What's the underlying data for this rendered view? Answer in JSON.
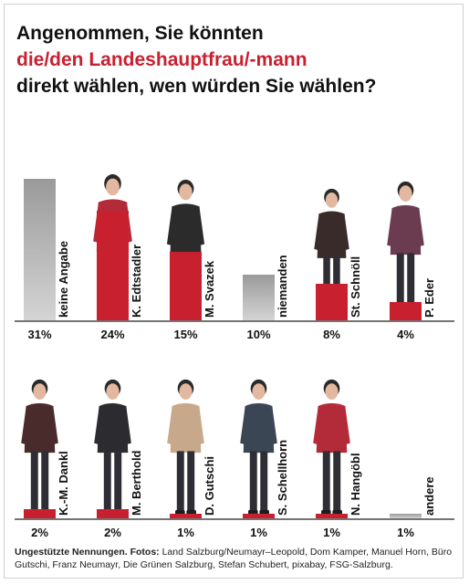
{
  "title": {
    "line1": "Angenommen, Sie könnten",
    "line2": "die/den Landeshauptfrau/-mann",
    "line3": "direkt wählen, wen würden Sie wählen?"
  },
  "colors": {
    "accent": "#c8202f",
    "grey": "#9a9a9a",
    "text": "#111111"
  },
  "chart_data": [
    {
      "type": "bar",
      "categories": [
        "keine Angabe",
        "K. Edtstadler",
        "M. Svazek",
        "niemanden",
        "St. Schnöll",
        "P. Eder"
      ],
      "values": [
        31,
        24,
        15,
        10,
        8,
        4
      ],
      "value_labels": [
        "31%",
        "24%",
        "15%",
        "10%",
        "8%",
        "4%"
      ],
      "bar_colors": [
        "#9a9a9a",
        "#c8202f",
        "#c8202f",
        "#9a9a9a",
        "#c8202f",
        "#c8202f"
      ],
      "photos": [
        false,
        true,
        true,
        false,
        true,
        true
      ],
      "unit": "%"
    },
    {
      "type": "bar",
      "categories": [
        "K.-M. Dankl",
        "M. Berthold",
        "D. Gutschi",
        "S. Schellhorn",
        "N. Hangöbl",
        "andere"
      ],
      "values": [
        2,
        2,
        1,
        1,
        1,
        1
      ],
      "value_labels": [
        "2%",
        "2%",
        "1%",
        "1%",
        "1%",
        "1%"
      ],
      "bar_colors": [
        "#c8202f",
        "#c8202f",
        "#c8202f",
        "#c8202f",
        "#c8202f",
        "#9a9a9a"
      ],
      "photos": [
        true,
        true,
        true,
        true,
        true,
        false
      ],
      "unit": "%"
    }
  ],
  "footnote": {
    "bold": "Ungestützte Nennungen. Fotos:",
    "text": " Land Salzburg/Neumayr–Leopold, Dom Kamper, Manuel Horn, Büro Gutschi, Franz Neumayr, Die Grünen Salzburg, Stefan Schubert, pixabay, FSG-Salzburg."
  }
}
